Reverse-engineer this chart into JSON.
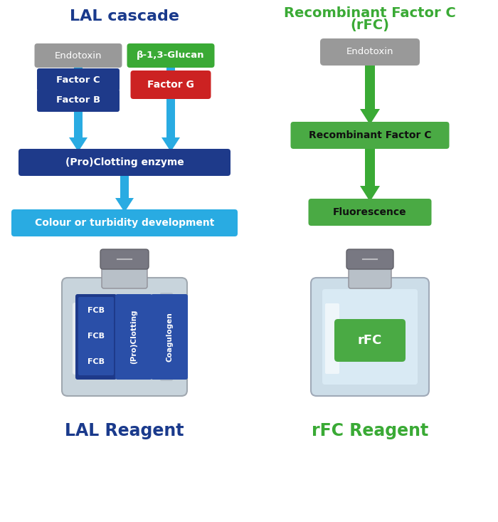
{
  "background_color": "#ffffff",
  "left_title": "LAL cascade",
  "right_title_line1": "Recombinant Factor C",
  "right_title_line2": "(rFC)",
  "left_title_color": "#1a3a8c",
  "right_title_color": "#3aaa35",
  "left_bottom_label": "LAL Reagent",
  "right_bottom_label": "rFC Reagent",
  "gray_box_color": "#999999",
  "dark_blue_box_color": "#1e3a8a",
  "green_box_color": "#3aaa35",
  "red_box_color": "#cc2222",
  "cyan_box_color": "#29abe2",
  "light_green_box_color": "#4aaa44",
  "cyan_arrow_color": "#29abe2",
  "green_arrow_color": "#3aaa35",
  "vial_body_color": "#d0dce8",
  "vial_edge_color": "#aaaaaa",
  "vial_neck_color": "#c0c8d0",
  "vial_cap_color": "#909098",
  "fcb_box_color": "#1e3a8a",
  "label_blue_color": "#1e3a8a"
}
